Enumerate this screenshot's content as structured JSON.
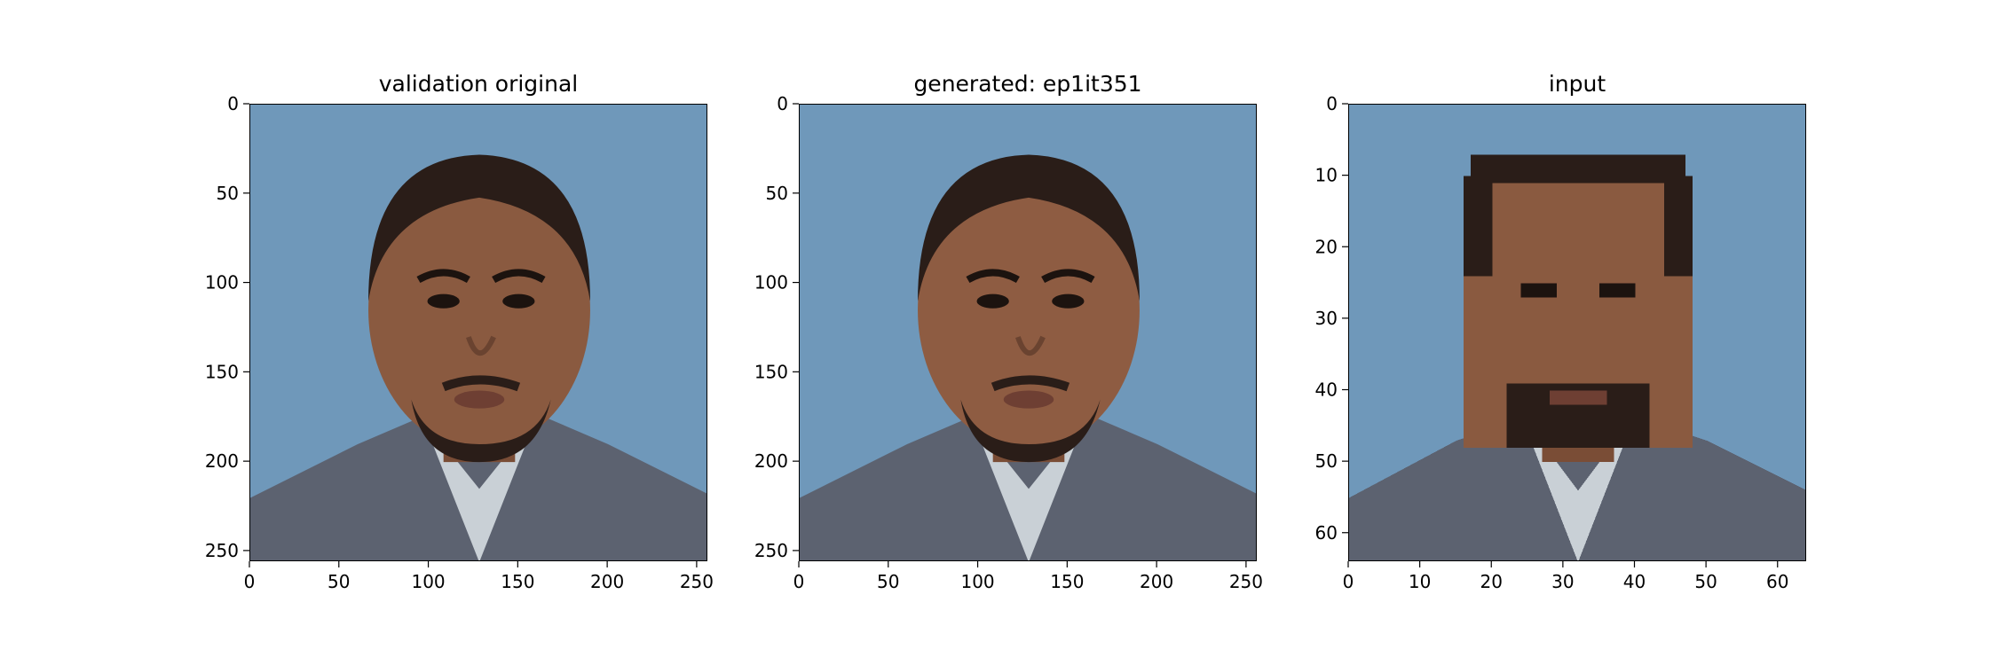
{
  "figure": {
    "panels": [
      {
        "title": "validation original",
        "image_description": "portrait photo, man against blue background",
        "x_ticks": [
          "0",
          "50",
          "100",
          "150",
          "200",
          "250"
        ],
        "y_ticks": [
          "0",
          "50",
          "100",
          "150",
          "200",
          "250"
        ],
        "extent": 256,
        "tick_values": [
          0,
          50,
          100,
          150,
          200,
          250
        ]
      },
      {
        "title": "generated: ep1it351",
        "image_description": "generated portrait photo, same subject",
        "x_ticks": [
          "0",
          "50",
          "100",
          "150",
          "200",
          "250"
        ],
        "y_ticks": [
          "0",
          "50",
          "100",
          "150",
          "200",
          "250"
        ],
        "extent": 256,
        "tick_values": [
          0,
          50,
          100,
          150,
          200,
          250
        ]
      },
      {
        "title": "input",
        "image_description": "low-resolution pixelated portrait",
        "x_ticks": [
          "0",
          "10",
          "20",
          "30",
          "40",
          "50",
          "60"
        ],
        "y_ticks": [
          "0",
          "10",
          "20",
          "30",
          "40",
          "50",
          "60"
        ],
        "extent": 64,
        "tick_values": [
          0,
          10,
          20,
          30,
          40,
          50,
          60
        ]
      }
    ],
    "colors": {
      "background_blue": "#6f98ba",
      "skin": "#8a5a40",
      "hair": "#2a1d18",
      "jacket": "#5c6270",
      "shirt": "#c9d0d6"
    }
  }
}
